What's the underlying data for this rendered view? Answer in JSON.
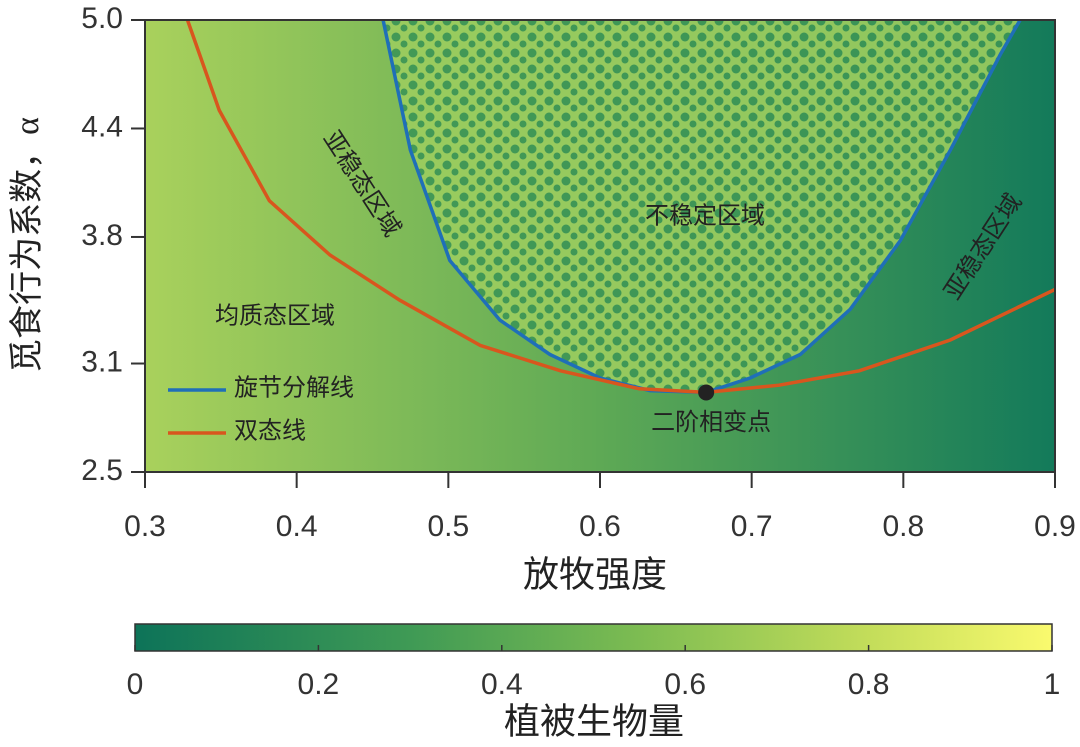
{
  "chart_data": {
    "type": "line",
    "xlabel": "放牧强度",
    "ylabel": "觅食行为系数，α",
    "xlim": [
      0.3,
      0.9
    ],
    "xticks": [
      0.3,
      0.4,
      0.5,
      0.6,
      0.7,
      0.8,
      0.9
    ],
    "ylim": [
      2.5,
      5.0
    ],
    "yticks": [
      2.5,
      3.1,
      3.8,
      4.4,
      {
        "value": 5,
        "label": "5.0"
      }
    ],
    "grid": false,
    "legend": "lower left",
    "series": [
      {
        "name": "旋节分解线",
        "color": "#1f6fb8",
        "x": [
          0.457,
          0.475,
          0.501,
          0.534,
          0.567,
          0.6,
          0.633,
          0.67,
          0.699,
          0.732,
          0.765,
          0.798,
          0.831,
          0.864,
          0.877
        ],
        "values": [
          5.0,
          4.28,
          3.67,
          3.34,
          3.15,
          3.02,
          2.95,
          2.94,
          3.02,
          3.15,
          3.4,
          3.78,
          4.28,
          4.81,
          5.0
        ]
      },
      {
        "name": "双态线",
        "color": "#d8561e",
        "x": [
          0.328,
          0.349,
          0.382,
          0.422,
          0.468,
          0.521,
          0.574,
          0.626,
          0.67,
          0.718,
          0.771,
          0.831,
          0.9
        ],
        "values": [
          5.0,
          4.5,
          4.0,
          3.7,
          3.45,
          3.2,
          3.06,
          2.96,
          2.94,
          2.98,
          3.06,
          3.23,
          3.51
        ]
      }
    ],
    "marker": {
      "label": "二阶相变点",
      "x": 0.67,
      "y": 2.94
    },
    "annotations": [
      "均质态区域",
      "亚稳态区域",
      "不稳定区域",
      "亚稳态区域"
    ],
    "colorbar": {
      "label": "植被生物量",
      "lim": [
        0,
        1
      ],
      "ticks": [
        0,
        0.2,
        0.4,
        0.6,
        0.8,
        1
      ]
    }
  }
}
